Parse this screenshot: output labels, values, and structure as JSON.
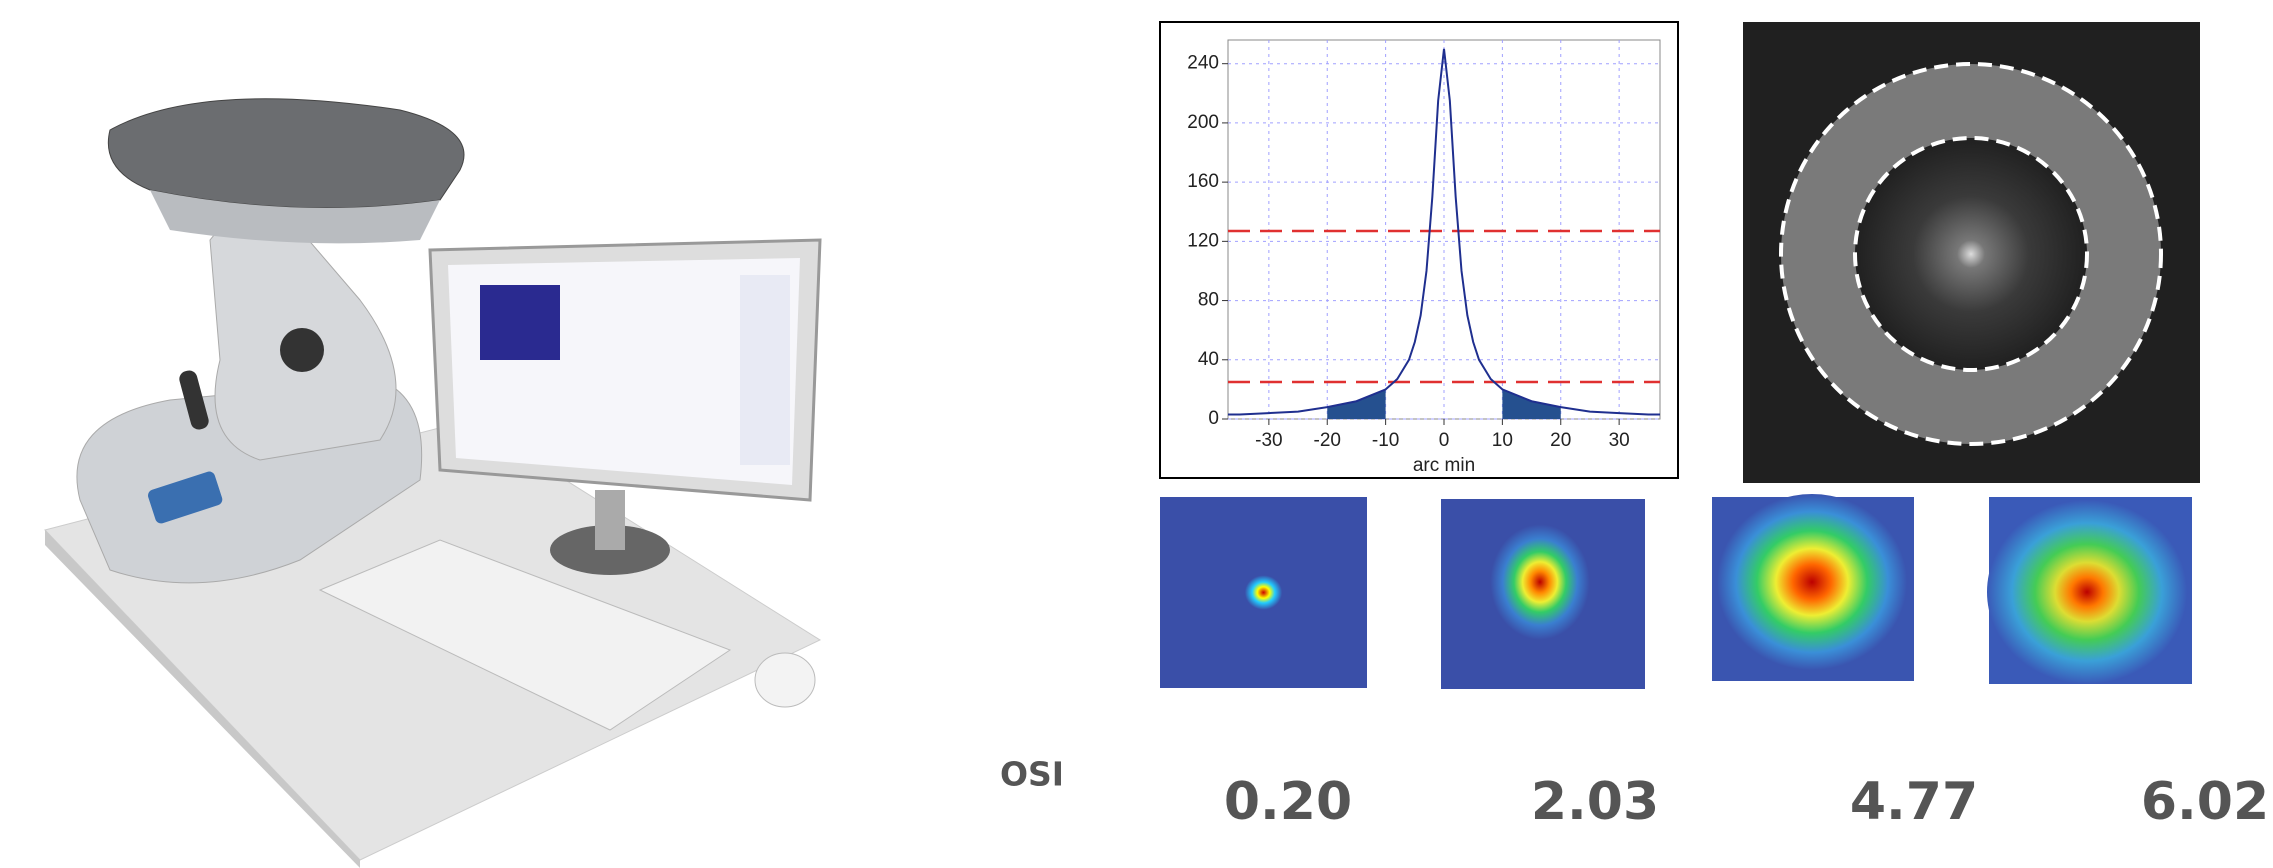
{
  "chart_data": {
    "type": "line",
    "xlabel": "arc min",
    "x": [
      -37,
      -35,
      -30,
      -25,
      -20,
      -15,
      -10,
      -8,
      -6,
      -5,
      -4,
      -3,
      -2,
      -1,
      0,
      1,
      2,
      3,
      4,
      5,
      6,
      8,
      10,
      15,
      20,
      25,
      30,
      35,
      37
    ],
    "series": [
      {
        "color": "#1f2f8f",
        "values": [
          3,
          3,
          4,
          5,
          8,
          12,
          20,
          27,
          40,
          52,
          70,
          100,
          150,
          215,
          250,
          215,
          150,
          100,
          70,
          52,
          40,
          27,
          20,
          12,
          8,
          5,
          4,
          3,
          3
        ]
      }
    ],
    "xlim": [
      -37,
      37
    ],
    "ylim": [
      0,
      256
    ],
    "xticks": [
      -30,
      -20,
      -10,
      0,
      10,
      20,
      30
    ],
    "yticks": [
      0,
      40,
      80,
      120,
      160,
      200,
      240
    ],
    "grid": true,
    "grid_color": "#a0a0ff",
    "reference_lines": [
      127,
      25
    ],
    "reference_color": "#e03030",
    "fill_ranges": [
      [
        -20,
        -10
      ],
      [
        10,
        20
      ]
    ],
    "fill_color": "#25508f"
  },
  "osi": {
    "label": "OSI",
    "values": [
      "0.20",
      "2.03",
      "4.77",
      "6.02"
    ]
  }
}
